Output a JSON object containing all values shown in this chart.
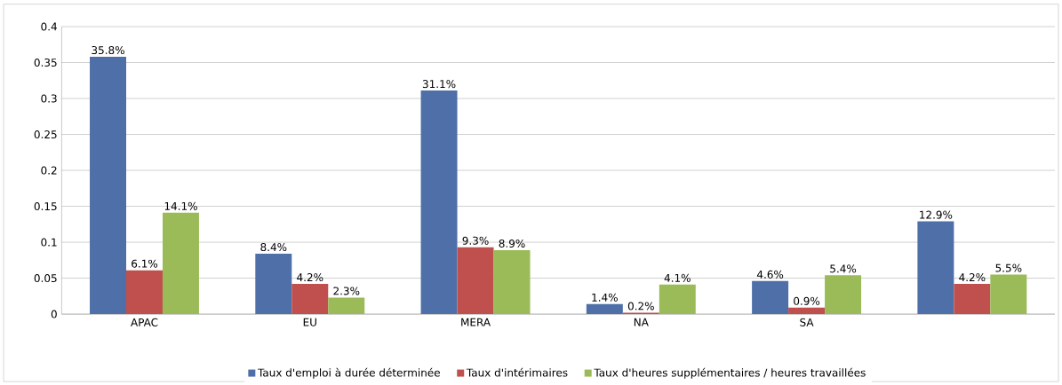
{
  "chart_data": {
    "type": "bar",
    "categories": [
      "APAC",
      "EU",
      "MERA",
      "NA",
      "SA",
      null
    ],
    "series": [
      {
        "name": "Taux d'emploi à durée déterminée",
        "color": "#4f6fa8",
        "values": [
          0.358,
          0.084,
          0.311,
          0.014,
          0.046,
          0.129
        ],
        "value_labels": [
          "35.8%",
          "8.4%",
          "31.1%",
          "1.4%",
          "4.6%",
          "12.9%"
        ]
      },
      {
        "name": "Taux d'intérimaires",
        "color": "#c0504d",
        "values": [
          0.061,
          0.042,
          0.093,
          0.002,
          0.009,
          0.042
        ],
        "value_labels": [
          "6.1%",
          "4.2%",
          "9.3%",
          "0.2%",
          "0.9%",
          "4.2%"
        ]
      },
      {
        "name": "Taux d'heures supplémentaires / heures travaillées",
        "color": "#9bbb59",
        "values": [
          0.141,
          0.023,
          0.089,
          0.041,
          0.054,
          0.055
        ],
        "value_labels": [
          "14.1%",
          "2.3%",
          "8.9%",
          "4.1%",
          "5.4%",
          "5.5%"
        ]
      }
    ],
    "ylim": [
      0,
      0.4
    ],
    "yticks": [
      0,
      0.05,
      0.1,
      0.15,
      0.2,
      0.25,
      0.3,
      0.35,
      0.4
    ],
    "grid": "y",
    "legend": "bottom"
  }
}
